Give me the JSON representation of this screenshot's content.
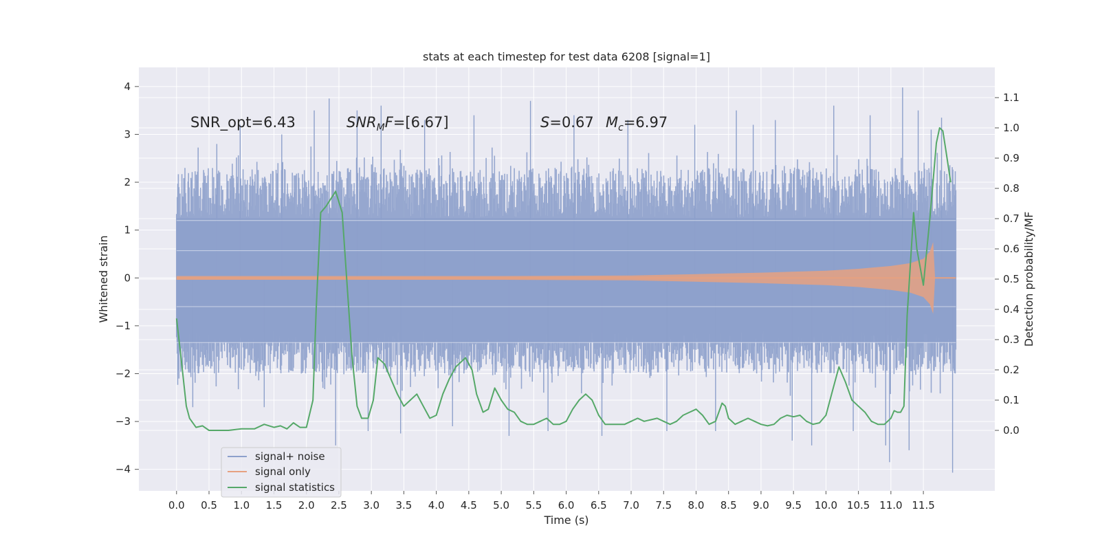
{
  "chart_data": {
    "type": "line",
    "title": "stats at each timestep for test data 6208 [signal=1]",
    "xlabel": "Time (s)",
    "ylabel": "Whitened strain",
    "y2label": "Detection probability/MF",
    "xlim": [
      -0.58,
      12.6
    ],
    "ylim": [
      -4.45,
      4.4
    ],
    "y2lim": [
      -0.2,
      1.2
    ],
    "x_ticks": [
      0.0,
      0.5,
      1.0,
      1.5,
      2.0,
      2.5,
      3.0,
      3.5,
      4.0,
      4.5,
      5.0,
      5.5,
      6.0,
      6.5,
      7.0,
      7.5,
      8.0,
      8.5,
      9.0,
      9.5,
      10.0,
      10.5,
      11.0,
      11.5
    ],
    "x_tick_labels": [
      "0.0",
      "0.5",
      "1.0",
      "1.5",
      "2.0",
      "2.5",
      "3.0",
      "3.5",
      "4.0",
      "4.5",
      "5.0",
      "5.5",
      "6.0",
      "6.5",
      "7.0",
      "7.5",
      "8.0",
      "8.5",
      "9.0",
      "9.5",
      "10.0",
      "10.5",
      "11.0",
      "11.5"
    ],
    "y_ticks": [
      4,
      3,
      2,
      1,
      0,
      -1,
      -2,
      -3,
      -4
    ],
    "y_tick_labels": [
      "4",
      "3",
      "2",
      "1",
      "0",
      "−1",
      "−2",
      "−3",
      "−4"
    ],
    "y2_ticks": [
      1.1,
      1.0,
      0.9,
      0.8,
      0.7,
      0.6,
      0.5,
      0.4,
      0.3,
      0.2,
      0.1,
      0.0
    ],
    "y2_tick_labels": [
      "1.1",
      "1.0",
      "0.9",
      "0.8",
      "0.7",
      "0.6",
      "0.5",
      "0.4",
      "0.3",
      "0.2",
      "0.1",
      "0.0"
    ],
    "annotations": {
      "snr_opt": "SNR_opt=6.43",
      "snr_mf_main": "SNR",
      "snr_mf_sub": "M",
      "snr_mf_f": "F",
      "snr_mf_value": "=[6.67]",
      "s_symbol": "S",
      "s_value": "=0.67",
      "mc_symbol": "M",
      "mc_sub": "c",
      "mc_value": "=6.97"
    },
    "grid": true,
    "legend_position": "lower-left",
    "series": [
      {
        "name": "signal+ noise",
        "axis": "left",
        "color": "#8da0cb",
        "x_range": [
          0.0,
          12.0
        ],
        "typical_envelope": [
          -2.0,
          2.3
        ],
        "extremes": [
          -4.07,
          3.98
        ],
        "spikes": [
          {
            "x": 0.25,
            "y": -2.7
          },
          {
            "x": 0.62,
            "y": 2.8
          },
          {
            "x": 0.98,
            "y": 3.2
          },
          {
            "x": 1.35,
            "y": -2.7
          },
          {
            "x": 1.62,
            "y": 3.0
          },
          {
            "x": 2.12,
            "y": 3.5
          },
          {
            "x": 2.35,
            "y": 3.75
          },
          {
            "x": 2.45,
            "y": -3.5
          },
          {
            "x": 2.78,
            "y": 3.5
          },
          {
            "x": 2.95,
            "y": -3.2
          },
          {
            "x": 3.15,
            "y": 3.6
          },
          {
            "x": 3.45,
            "y": -3.25
          },
          {
            "x": 3.82,
            "y": 3.3
          },
          {
            "x": 4.25,
            "y": -3.1
          },
          {
            "x": 4.58,
            "y": 3.4
          },
          {
            "x": 5.12,
            "y": -3.3
          },
          {
            "x": 5.45,
            "y": 3.7
          },
          {
            "x": 5.72,
            "y": -3.2
          },
          {
            "x": 6.12,
            "y": 3.4
          },
          {
            "x": 6.55,
            "y": -3.3
          },
          {
            "x": 6.95,
            "y": 3.3
          },
          {
            "x": 7.55,
            "y": -3.2
          },
          {
            "x": 7.98,
            "y": 3.2
          },
          {
            "x": 8.3,
            "y": -3.2
          },
          {
            "x": 8.62,
            "y": 3.5
          },
          {
            "x": 8.88,
            "y": 3.2
          },
          {
            "x": 9.22,
            "y": 3.3
          },
          {
            "x": 9.48,
            "y": -3.4
          },
          {
            "x": 9.78,
            "y": -3.5
          },
          {
            "x": 10.12,
            "y": 3.6
          },
          {
            "x": 10.42,
            "y": -3.2
          },
          {
            "x": 10.68,
            "y": 3.4
          },
          {
            "x": 10.92,
            "y": -3.5
          },
          {
            "x": 10.98,
            "y": -3.85
          },
          {
            "x": 11.18,
            "y": 3.98
          },
          {
            "x": 11.28,
            "y": -3.6
          },
          {
            "x": 11.42,
            "y": 3.5
          },
          {
            "x": 11.62,
            "y": 3.1
          },
          {
            "x": 11.78,
            "y": 3.35
          },
          {
            "x": 11.95,
            "y": -4.07
          }
        ]
      },
      {
        "name": "signal only",
        "axis": "left",
        "color": "#e6a180",
        "envelope": [
          {
            "x": 0.0,
            "a": 0.04
          },
          {
            "x": 5.0,
            "a": 0.04
          },
          {
            "x": 7.0,
            "a": 0.05
          },
          {
            "x": 8.0,
            "a": 0.08
          },
          {
            "x": 9.0,
            "a": 0.11
          },
          {
            "x": 10.0,
            "a": 0.15
          },
          {
            "x": 10.5,
            "a": 0.19
          },
          {
            "x": 11.0,
            "a": 0.25
          },
          {
            "x": 11.3,
            "a": 0.31
          },
          {
            "x": 11.5,
            "a": 0.4
          },
          {
            "x": 11.6,
            "a": 0.55
          },
          {
            "x": 11.65,
            "a": 0.75
          },
          {
            "x": 11.68,
            "a": 0.0
          }
        ]
      },
      {
        "name": "signal statistics",
        "axis": "right",
        "color": "#55a868",
        "x": [
          0.0,
          0.08,
          0.15,
          0.2,
          0.3,
          0.4,
          0.5,
          0.6,
          0.8,
          1.0,
          1.2,
          1.35,
          1.5,
          1.6,
          1.7,
          1.8,
          1.9,
          2.0,
          2.1,
          2.15,
          2.22,
          2.3,
          2.45,
          2.55,
          2.62,
          2.7,
          2.78,
          2.85,
          2.95,
          3.03,
          3.1,
          3.2,
          3.3,
          3.4,
          3.5,
          3.6,
          3.7,
          3.8,
          3.9,
          4.0,
          4.1,
          4.2,
          4.3,
          4.45,
          4.55,
          4.62,
          4.72,
          4.8,
          4.9,
          5.0,
          5.1,
          5.2,
          5.3,
          5.4,
          5.5,
          5.6,
          5.7,
          5.8,
          5.9,
          6.0,
          6.1,
          6.2,
          6.3,
          6.4,
          6.5,
          6.6,
          6.7,
          6.8,
          6.9,
          7.0,
          7.1,
          7.2,
          7.3,
          7.4,
          7.5,
          7.6,
          7.7,
          7.8,
          7.9,
          8.0,
          8.1,
          8.2,
          8.3,
          8.4,
          8.45,
          8.5,
          8.6,
          8.7,
          8.8,
          8.9,
          9.0,
          9.1,
          9.2,
          9.3,
          9.4,
          9.5,
          9.6,
          9.7,
          9.8,
          9.9,
          10.0,
          10.1,
          10.2,
          10.3,
          10.4,
          10.5,
          10.6,
          10.7,
          10.8,
          10.9,
          11.0,
          11.05,
          11.1,
          11.15,
          11.2,
          11.25,
          11.3,
          11.35,
          11.4,
          11.5,
          11.6,
          11.7,
          11.75,
          11.8,
          11.85,
          11.92
        ],
        "values": [
          0.37,
          0.22,
          0.08,
          0.04,
          0.01,
          0.015,
          0.0,
          0.0,
          0.0,
          0.005,
          0.005,
          0.02,
          0.01,
          0.015,
          0.005,
          0.025,
          0.01,
          0.01,
          0.1,
          0.4,
          0.72,
          0.74,
          0.79,
          0.72,
          0.5,
          0.25,
          0.08,
          0.04,
          0.04,
          0.1,
          0.24,
          0.22,
          0.17,
          0.12,
          0.08,
          0.1,
          0.12,
          0.08,
          0.04,
          0.05,
          0.12,
          0.17,
          0.21,
          0.24,
          0.2,
          0.12,
          0.06,
          0.07,
          0.14,
          0.1,
          0.07,
          0.06,
          0.03,
          0.02,
          0.02,
          0.03,
          0.04,
          0.02,
          0.02,
          0.03,
          0.07,
          0.1,
          0.12,
          0.1,
          0.05,
          0.02,
          0.02,
          0.02,
          0.02,
          0.03,
          0.04,
          0.03,
          0.035,
          0.04,
          0.03,
          0.02,
          0.03,
          0.05,
          0.06,
          0.07,
          0.05,
          0.02,
          0.03,
          0.09,
          0.08,
          0.04,
          0.02,
          0.03,
          0.04,
          0.03,
          0.02,
          0.015,
          0.02,
          0.04,
          0.05,
          0.045,
          0.05,
          0.03,
          0.02,
          0.025,
          0.05,
          0.13,
          0.21,
          0.16,
          0.1,
          0.08,
          0.06,
          0.03,
          0.02,
          0.02,
          0.04,
          0.065,
          0.06,
          0.06,
          0.08,
          0.38,
          0.55,
          0.72,
          0.6,
          0.48,
          0.7,
          0.95,
          1.0,
          0.99,
          0.92,
          0.82
        ]
      }
    ]
  }
}
